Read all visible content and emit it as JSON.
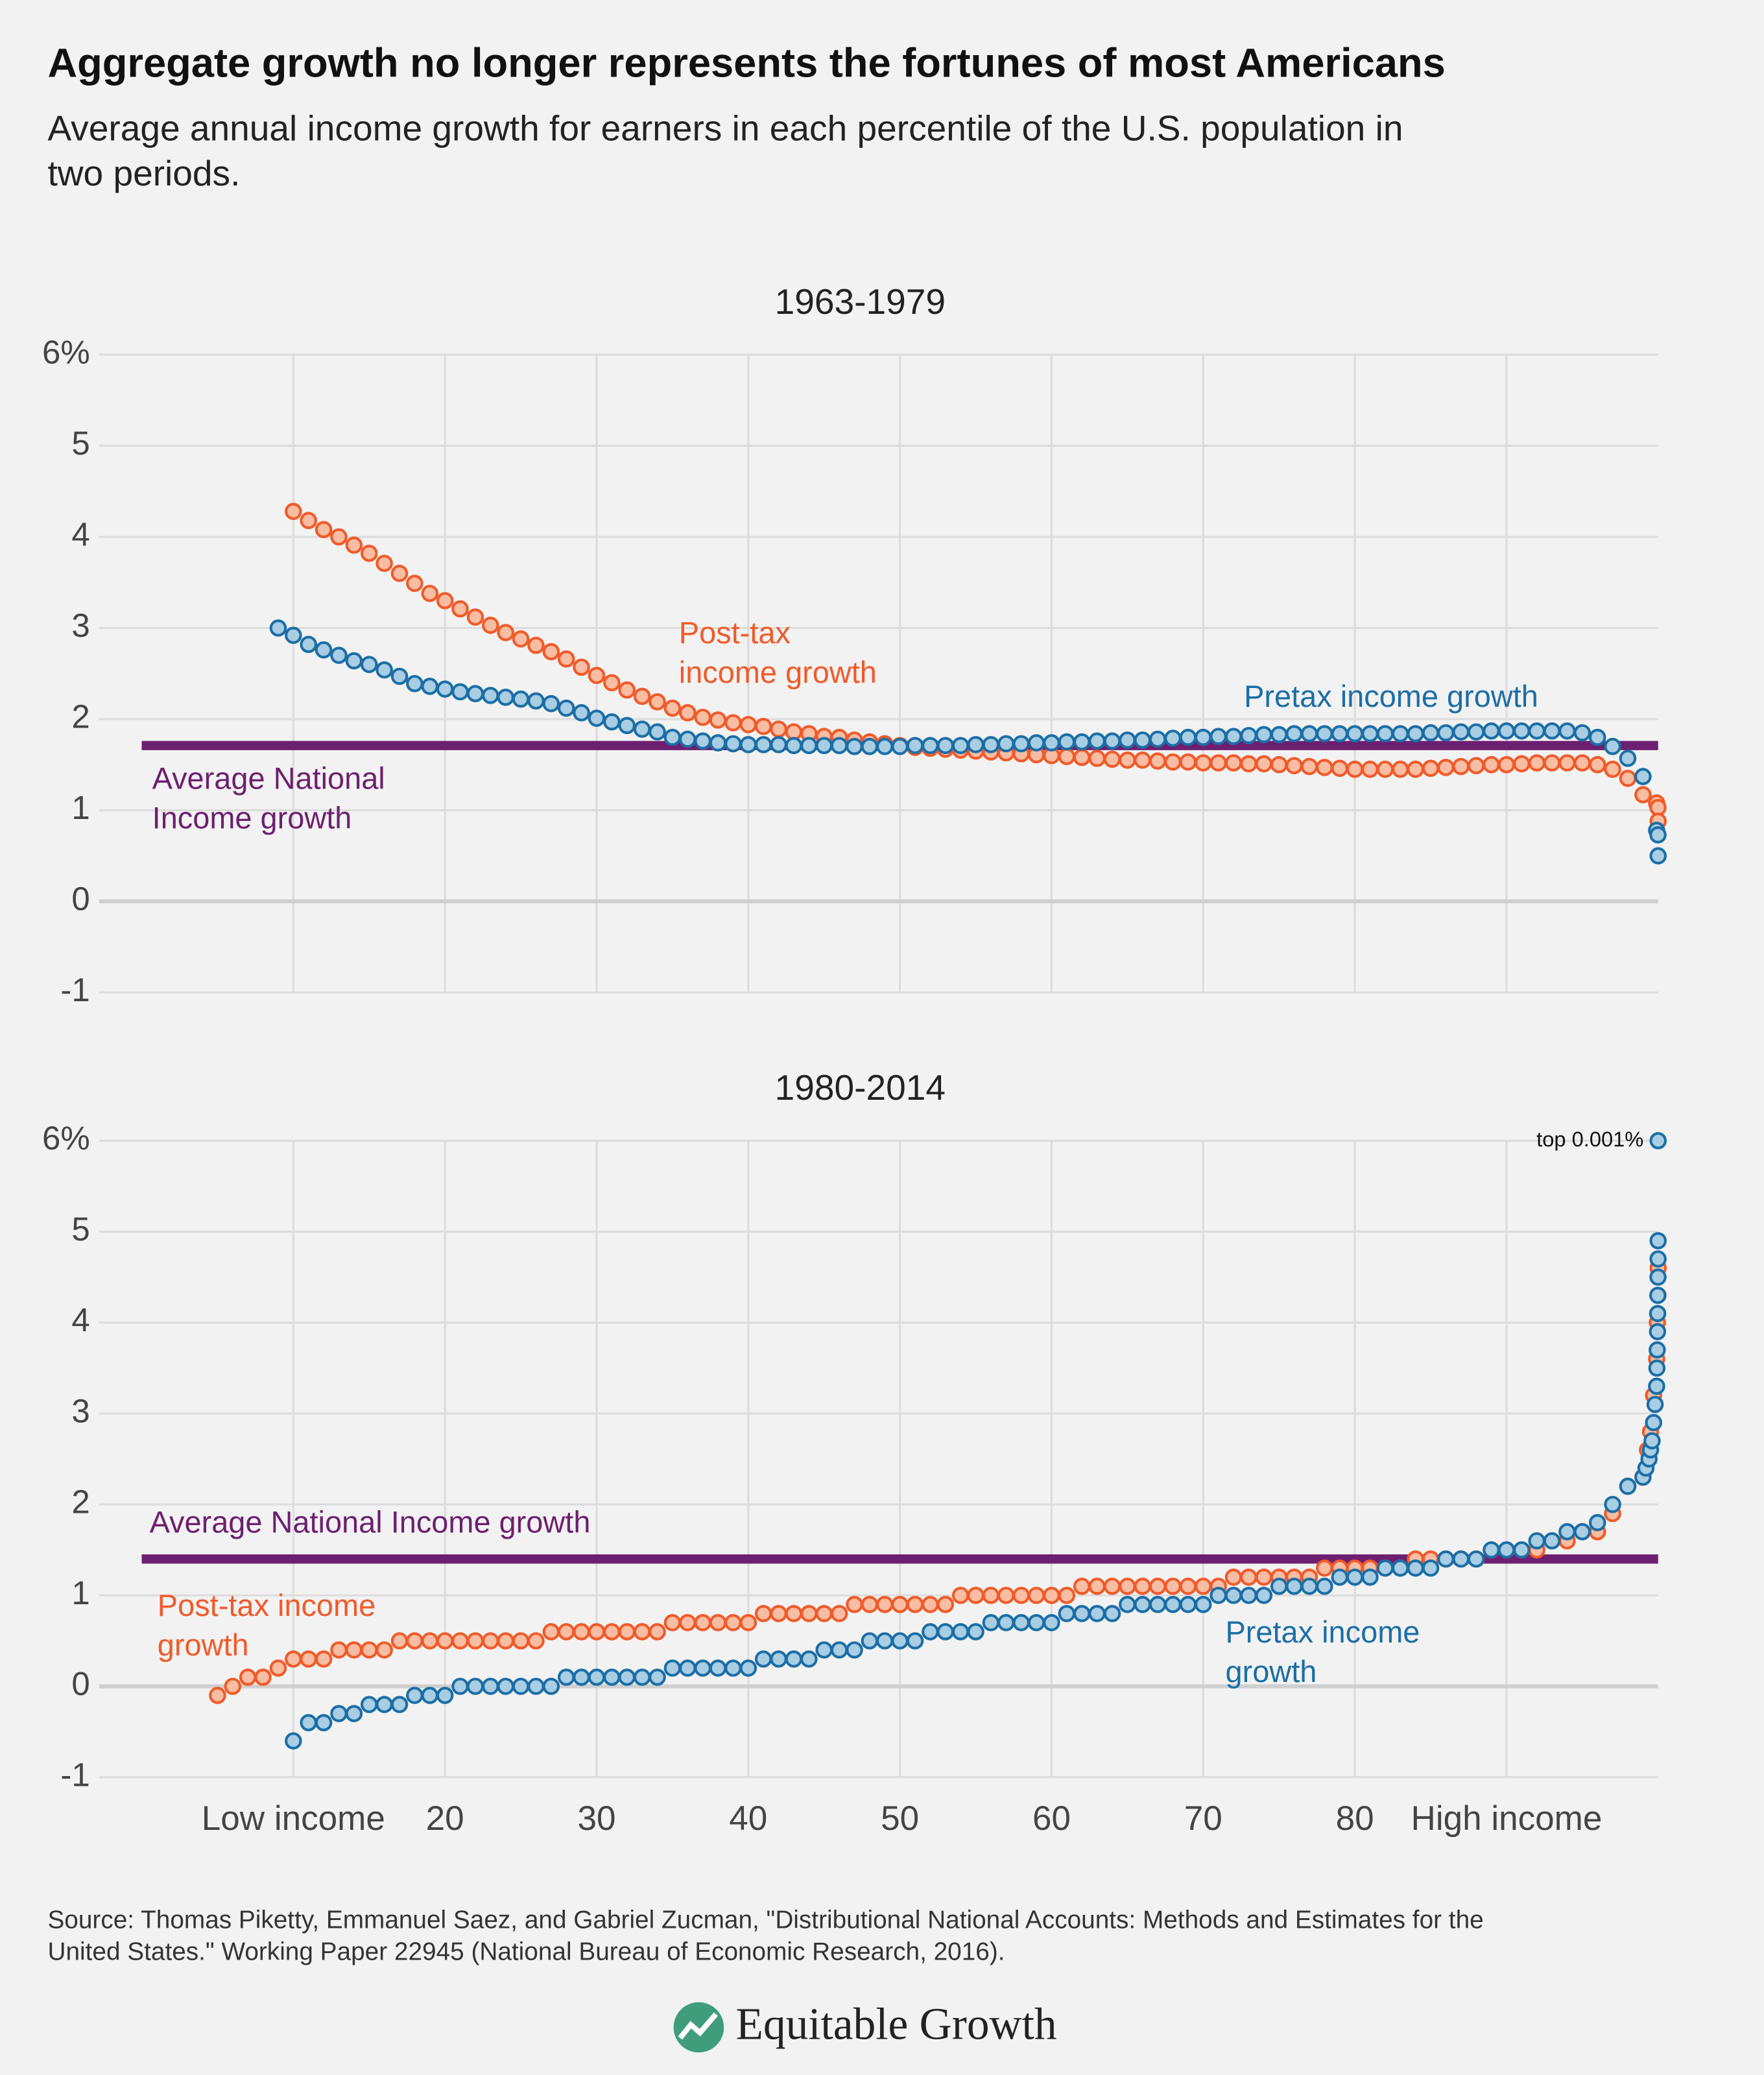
{
  "title": "Aggregate growth no longer represents the fortunes of most Americans",
  "subtitle": [
    "Average annual income growth for earners in each percentile of the U.S. population in",
    "two periods."
  ],
  "source": [
    "Source: Thomas Piketty, Emmanuel Saez, and Gabriel Zucman, \"Distributional National Accounts: Methods and Estimates for the",
    "United States.\" Working Paper 22945 (National Bureau of Economic Research, 2016)."
  ],
  "logo": "Equitable Growth",
  "chart_data": [
    {
      "type": "scatter",
      "title": "1963-1979",
      "xlim": [
        -2.8,
        100
      ],
      "ylim": [
        -1,
        6
      ],
      "xticks": [
        10,
        20,
        30,
        40,
        50,
        60,
        70,
        80,
        90
      ],
      "show_xtick_labels": false,
      "yticks": [
        {
          "value": 6,
          "label": "6%"
        },
        5,
        4,
        3,
        2,
        1,
        0,
        -1
      ],
      "grid": true,
      "average": {
        "label": [
          "Average National",
          "Income growth"
        ],
        "value": 1.71,
        "x": [
          0,
          100
        ],
        "color": "#6d1f70"
      },
      "series": [
        {
          "name": [
            "Post-tax",
            "income growth"
          ],
          "color": "#f15a29",
          "fill": "#f8bda3",
          "x": [
            10,
            11,
            12,
            13,
            14,
            15,
            16,
            17,
            18,
            19,
            20,
            21,
            22,
            23,
            24,
            25,
            26,
            27,
            28,
            29,
            30,
            31,
            32,
            33,
            34,
            35,
            36,
            37,
            38,
            39,
            40,
            41,
            42,
            43,
            44,
            45,
            46,
            47,
            48,
            49,
            50,
            51,
            52,
            53,
            54,
            55,
            56,
            57,
            58,
            59,
            60,
            61,
            62,
            63,
            64,
            65,
            66,
            67,
            68,
            69,
            70,
            71,
            72,
            73,
            74,
            75,
            76,
            77,
            78,
            79,
            80,
            81,
            82,
            83,
            84,
            85,
            86,
            87,
            88,
            89,
            90,
            91,
            92,
            93,
            94,
            95,
            96,
            97,
            98,
            99,
            99.9,
            99.99,
            100
          ],
          "values": [
            4.28,
            4.18,
            4.08,
            4.0,
            3.91,
            3.82,
            3.71,
            3.6,
            3.49,
            3.38,
            3.3,
            3.21,
            3.12,
            3.03,
            2.95,
            2.88,
            2.81,
            2.74,
            2.66,
            2.57,
            2.48,
            2.4,
            2.32,
            2.25,
            2.19,
            2.12,
            2.07,
            2.02,
            1.99,
            1.96,
            1.94,
            1.92,
            1.89,
            1.86,
            1.84,
            1.81,
            1.8,
            1.77,
            1.75,
            1.73,
            1.71,
            1.69,
            1.68,
            1.67,
            1.66,
            1.65,
            1.64,
            1.63,
            1.62,
            1.61,
            1.6,
            1.59,
            1.58,
            1.57,
            1.56,
            1.55,
            1.55,
            1.54,
            1.53,
            1.53,
            1.52,
            1.52,
            1.52,
            1.51,
            1.51,
            1.5,
            1.49,
            1.48,
            1.47,
            1.46,
            1.45,
            1.45,
            1.45,
            1.45,
            1.45,
            1.46,
            1.47,
            1.48,
            1.49,
            1.5,
            1.5,
            1.51,
            1.52,
            1.52,
            1.52,
            1.52,
            1.5,
            1.45,
            1.35,
            1.17,
            1.08,
            1.03,
            0.88
          ]
        },
        {
          "name": [
            "Pretax income growth"
          ],
          "color": "#1b6ea6",
          "fill": "#a9cde2",
          "x": [
            9,
            10,
            11,
            12,
            13,
            14,
            15,
            16,
            17,
            18,
            19,
            20,
            21,
            22,
            23,
            24,
            25,
            26,
            27,
            28,
            29,
            30,
            31,
            32,
            33,
            34,
            35,
            36,
            37,
            38,
            39,
            40,
            41,
            42,
            43,
            44,
            45,
            46,
            47,
            48,
            49,
            50,
            51,
            52,
            53,
            54,
            55,
            56,
            57,
            58,
            59,
            60,
            61,
            62,
            63,
            64,
            65,
            66,
            67,
            68,
            69,
            70,
            71,
            72,
            73,
            74,
            75,
            76,
            77,
            78,
            79,
            80,
            81,
            82,
            83,
            84,
            85,
            86,
            87,
            88,
            89,
            90,
            91,
            92,
            93,
            94,
            95,
            96,
            97,
            98,
            99,
            99.9,
            99.99,
            100
          ],
          "values": [
            3.0,
            2.92,
            2.82,
            2.76,
            2.7,
            2.64,
            2.6,
            2.54,
            2.47,
            2.39,
            2.36,
            2.33,
            2.3,
            2.28,
            2.26,
            2.24,
            2.22,
            2.2,
            2.17,
            2.12,
            2.07,
            2.01,
            1.97,
            1.93,
            1.89,
            1.86,
            1.8,
            1.78,
            1.76,
            1.74,
            1.73,
            1.72,
            1.72,
            1.72,
            1.71,
            1.71,
            1.71,
            1.71,
            1.7,
            1.7,
            1.7,
            1.7,
            1.71,
            1.71,
            1.71,
            1.71,
            1.72,
            1.72,
            1.73,
            1.73,
            1.74,
            1.74,
            1.75,
            1.75,
            1.76,
            1.76,
            1.77,
            1.77,
            1.78,
            1.79,
            1.8,
            1.8,
            1.81,
            1.81,
            1.82,
            1.83,
            1.83,
            1.84,
            1.84,
            1.84,
            1.84,
            1.84,
            1.84,
            1.84,
            1.84,
            1.84,
            1.85,
            1.85,
            1.86,
            1.86,
            1.87,
            1.87,
            1.87,
            1.87,
            1.87,
            1.87,
            1.85,
            1.8,
            1.7,
            1.57,
            1.37,
            0.78,
            0.73,
            0.5
          ]
        }
      ]
    },
    {
      "type": "scatter",
      "title": "1980-2014",
      "xlim": [
        -2.8,
        100
      ],
      "ylim": [
        -1,
        6
      ],
      "xticks": [
        {
          "value": 10,
          "label": "Low income"
        },
        20,
        30,
        40,
        50,
        60,
        70,
        80,
        {
          "value": 90,
          "label": "High income"
        }
      ],
      "show_xtick_labels": true,
      "yticks": [
        {
          "value": 6,
          "label": "6%"
        },
        5,
        4,
        3,
        2,
        1,
        0,
        -1
      ],
      "grid": true,
      "average": {
        "label": [
          "Average National Income growth"
        ],
        "value": 1.4,
        "x": [
          0,
          100
        ],
        "color": "#6d1f70"
      },
      "annotation": "top 0.001%",
      "series": [
        {
          "name": [
            "Post-tax income",
            "growth"
          ],
          "color": "#f15a29",
          "fill": "#f8bda3",
          "x": [
            5,
            6,
            7,
            8,
            9,
            10,
            11,
            12,
            13,
            14,
            15,
            16,
            17,
            18,
            19,
            20,
            21,
            22,
            23,
            24,
            25,
            26,
            27,
            28,
            29,
            30,
            31,
            32,
            33,
            34,
            35,
            36,
            37,
            38,
            39,
            40,
            41,
            42,
            43,
            44,
            45,
            46,
            47,
            48,
            49,
            50,
            51,
            52,
            53,
            54,
            55,
            56,
            57,
            58,
            59,
            60,
            61,
            62,
            63,
            64,
            65,
            66,
            67,
            68,
            69,
            70,
            71,
            72,
            73,
            74,
            75,
            76,
            77,
            78,
            79,
            80,
            81,
            82,
            83,
            84,
            85,
            86,
            87,
            88,
            89,
            90,
            91,
            92,
            93,
            94,
            95,
            96,
            97,
            98,
            99,
            99.3,
            99.5,
            99.7,
            99.9,
            99.95,
            99.99,
            100
          ],
          "values": [
            -0.1,
            0,
            0.1,
            0.1,
            0.2,
            0.3,
            0.3,
            0.3,
            0.4,
            0.4,
            0.4,
            0.4,
            0.5,
            0.5,
            0.5,
            0.5,
            0.5,
            0.5,
            0.5,
            0.5,
            0.5,
            0.5,
            0.6,
            0.6,
            0.6,
            0.6,
            0.6,
            0.6,
            0.6,
            0.6,
            0.7,
            0.7,
            0.7,
            0.7,
            0.7,
            0.7,
            0.8,
            0.8,
            0.8,
            0.8,
            0.8,
            0.8,
            0.9,
            0.9,
            0.9,
            0.9,
            0.9,
            0.9,
            0.9,
            1.0,
            1.0,
            1.0,
            1.0,
            1.0,
            1.0,
            1.0,
            1.0,
            1.1,
            1.1,
            1.1,
            1.1,
            1.1,
            1.1,
            1.1,
            1.1,
            1.1,
            1.1,
            1.2,
            1.2,
            1.2,
            1.2,
            1.2,
            1.2,
            1.3,
            1.3,
            1.3,
            1.3,
            1.3,
            1.3,
            1.4,
            1.4,
            1.4,
            1.4,
            1.4,
            1.5,
            1.5,
            1.5,
            1.5,
            1.6,
            1.6,
            1.7,
            1.7,
            1.9,
            2.2,
            2.3,
            2.6,
            2.8,
            3.2,
            3.6,
            4.0,
            4.3,
            4.6
          ]
        },
        {
          "name": [
            "Pretax income",
            "growth"
          ],
          "color": "#1b6ea6",
          "fill": "#a9cde2",
          "x": [
            10,
            11,
            12,
            13,
            14,
            15,
            16,
            17,
            18,
            19,
            20,
            21,
            22,
            23,
            24,
            25,
            26,
            27,
            28,
            29,
            30,
            31,
            32,
            33,
            34,
            35,
            36,
            37,
            38,
            39,
            40,
            41,
            42,
            43,
            44,
            45,
            46,
            47,
            48,
            49,
            50,
            51,
            52,
            53,
            54,
            55,
            56,
            57,
            58,
            59,
            60,
            61,
            62,
            63,
            64,
            65,
            66,
            67,
            68,
            69,
            70,
            71,
            72,
            73,
            74,
            75,
            76,
            77,
            78,
            79,
            80,
            81,
            82,
            83,
            84,
            85,
            86,
            87,
            88,
            89,
            90,
            91,
            92,
            93,
            94,
            95,
            96,
            97,
            98,
            99,
            99.2,
            99.4,
            99.5,
            99.6,
            99.7,
            99.8,
            99.9,
            99.92,
            99.94,
            99.96,
            99.97,
            99.98,
            99.99,
            99.995,
            99.999,
            100
          ],
          "values": [
            -0.6,
            -0.4,
            -0.4,
            -0.3,
            -0.3,
            -0.2,
            -0.2,
            -0.2,
            -0.1,
            -0.1,
            -0.1,
            0,
            0,
            0,
            0,
            0,
            0,
            0,
            0.1,
            0.1,
            0.1,
            0.1,
            0.1,
            0.1,
            0.1,
            0.2,
            0.2,
            0.2,
            0.2,
            0.2,
            0.2,
            0.3,
            0.3,
            0.3,
            0.3,
            0.4,
            0.4,
            0.4,
            0.5,
            0.5,
            0.5,
            0.5,
            0.6,
            0.6,
            0.6,
            0.6,
            0.7,
            0.7,
            0.7,
            0.7,
            0.7,
            0.8,
            0.8,
            0.8,
            0.8,
            0.9,
            0.9,
            0.9,
            0.9,
            0.9,
            0.9,
            1.0,
            1.0,
            1.0,
            1.0,
            1.1,
            1.1,
            1.1,
            1.1,
            1.2,
            1.2,
            1.2,
            1.3,
            1.3,
            1.3,
            1.3,
            1.4,
            1.4,
            1.4,
            1.5,
            1.5,
            1.5,
            1.6,
            1.6,
            1.7,
            1.7,
            1.8,
            2.0,
            2.2,
            2.3,
            2.4,
            2.5,
            2.6,
            2.7,
            2.9,
            3.1,
            3.3,
            3.5,
            3.7,
            3.9,
            4.1,
            4.3,
            4.5,
            4.7,
            4.9,
            6.0
          ]
        }
      ]
    }
  ]
}
